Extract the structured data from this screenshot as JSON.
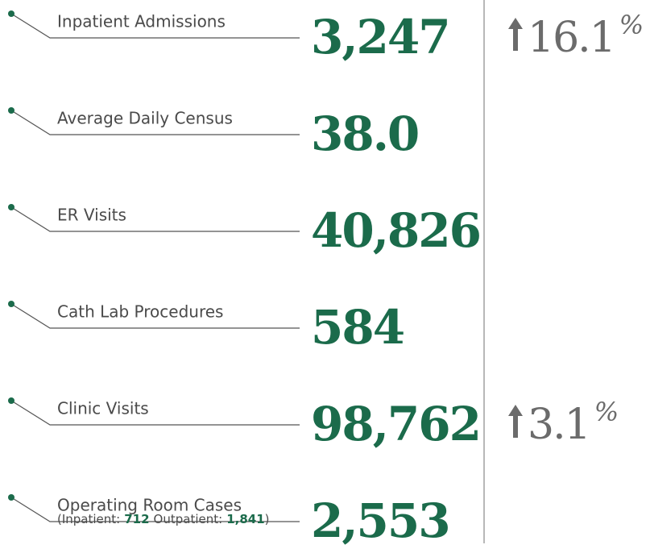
{
  "items": [
    {
      "label": "Inpatient Admissions",
      "value": "3,247",
      "change": {
        "value": "16.1",
        "unit": "%"
      }
    },
    {
      "label": "Average Daily Census",
      "value": "38.0"
    },
    {
      "label": "ER Visits",
      "value": "40,826"
    },
    {
      "label": "Cath Lab Procedures",
      "value": "584"
    },
    {
      "label": "Clinic Visits",
      "value": "98,762",
      "change": {
        "value": "3.1",
        "unit": "%"
      }
    },
    {
      "label": "Operating Room Cases",
      "value": "2,553",
      "note": {
        "open": "(",
        "inpatient_label": "Inpatient:",
        "inpatient_value": "712",
        "outpatient_label": "Outpatient:",
        "outpatient_value": "1,841",
        "close": ")"
      }
    }
  ]
}
